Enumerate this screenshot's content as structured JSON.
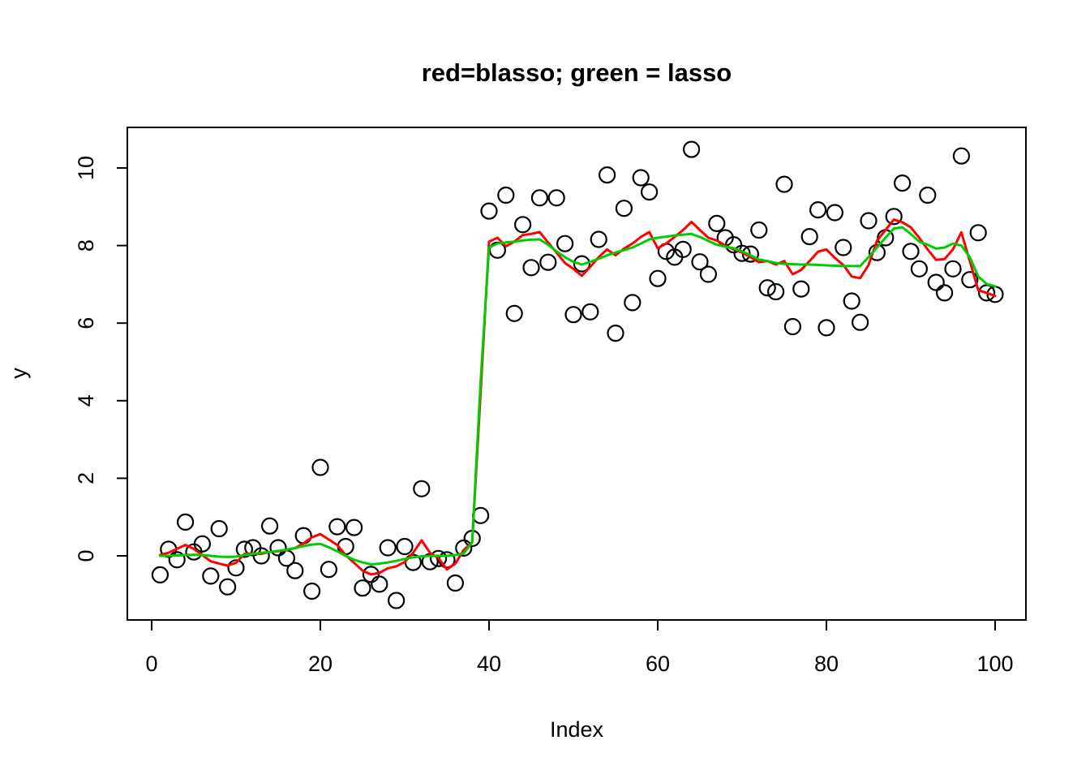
{
  "chart_data": {
    "type": "scatter",
    "title": "red=blasso; green = lasso",
    "xlabel": "Index",
    "ylabel": "y",
    "x_ticks": [
      0,
      20,
      40,
      60,
      80,
      100
    ],
    "y_ticks": [
      0,
      2,
      4,
      6,
      8,
      10
    ],
    "xlim": [
      -3,
      104
    ],
    "ylim": [
      -1.66,
      11.05
    ],
    "grid": false,
    "point_style": "open-circle",
    "point_color": "#000000",
    "background_color": "#ffffff",
    "x": "index 1..100",
    "points": [
      -0.49,
      0.17,
      -0.1,
      0.87,
      0.1,
      0.31,
      -0.52,
      0.7,
      -0.8,
      -0.31,
      0.17,
      0.21,
      0.0,
      0.77,
      0.21,
      -0.06,
      -0.38,
      0.52,
      -0.91,
      2.28,
      -0.35,
      0.75,
      0.24,
      0.73,
      -0.83,
      -0.48,
      -0.73,
      0.21,
      -1.15,
      0.24,
      -0.17,
      1.73,
      -0.15,
      -0.07,
      -0.1,
      -0.7,
      0.2,
      0.45,
      1.04,
      8.89,
      7.88,
      9.3,
      6.25,
      8.54,
      7.43,
      9.23,
      7.57,
      9.23,
      8.05,
      6.22,
      7.53,
      6.29,
      8.16,
      9.82,
      5.74,
      8.96,
      6.53,
      9.75,
      9.38,
      7.15,
      7.85,
      7.7,
      7.9,
      10.48,
      7.58,
      7.26,
      8.57,
      8.2,
      8.02,
      7.8,
      7.78,
      8.4,
      6.91,
      6.81,
      9.58,
      5.91,
      6.88,
      8.23,
      8.92,
      5.88,
      8.85,
      7.95,
      6.57,
      6.02,
      8.64,
      7.82,
      8.2,
      8.75,
      9.61,
      7.85,
      7.4,
      9.3,
      7.05,
      6.78,
      7.4,
      10.31,
      7.12,
      8.33,
      6.78,
      6.74
    ],
    "series": [
      {
        "name": "blasso",
        "color": "#ff0000",
        "values": [
          0.02,
          0.08,
          0.18,
          0.28,
          0.18,
          0.02,
          -0.14,
          -0.2,
          -0.25,
          -0.18,
          0.05,
          0.06,
          0.05,
          0.1,
          0.12,
          0.15,
          0.2,
          0.32,
          0.48,
          0.56,
          0.42,
          0.28,
          0.02,
          -0.18,
          -0.38,
          -0.48,
          -0.44,
          -0.32,
          -0.27,
          -0.16,
          0.08,
          0.4,
          0.08,
          -0.06,
          -0.35,
          -0.2,
          0.15,
          0.35,
          4.2,
          8.1,
          8.2,
          7.98,
          8.1,
          8.27,
          8.3,
          8.35,
          8.08,
          7.82,
          7.55,
          7.4,
          7.22,
          7.45,
          7.7,
          7.9,
          7.75,
          7.92,
          8.05,
          8.22,
          8.35,
          7.93,
          8.05,
          8.22,
          8.4,
          8.61,
          8.4,
          8.2,
          8.13,
          8.0,
          7.9,
          7.82,
          7.7,
          7.57,
          7.6,
          7.51,
          7.6,
          7.26,
          7.37,
          7.6,
          7.84,
          7.9,
          7.68,
          7.5,
          7.2,
          7.16,
          7.5,
          8.13,
          8.4,
          8.67,
          8.6,
          8.47,
          8.2,
          7.9,
          7.63,
          7.65,
          7.9,
          8.34,
          7.6,
          6.85,
          6.78,
          6.7
        ]
      },
      {
        "name": "lasso",
        "color": "#00cc00",
        "values": [
          0.0,
          0.0,
          0.01,
          0.02,
          0.03,
          0.02,
          0.0,
          -0.02,
          -0.03,
          -0.02,
          0.02,
          0.05,
          0.08,
          0.1,
          0.13,
          0.16,
          0.2,
          0.25,
          0.29,
          0.31,
          0.22,
          0.12,
          0.0,
          -0.1,
          -0.17,
          -0.22,
          -0.2,
          -0.17,
          -0.13,
          -0.08,
          -0.04,
          -0.01,
          0.0,
          0.0,
          0.0,
          0.02,
          0.06,
          0.35,
          4.5,
          7.95,
          8.05,
          8.08,
          8.1,
          8.13,
          8.15,
          8.16,
          8.02,
          7.85,
          7.7,
          7.58,
          7.51,
          7.58,
          7.66,
          7.75,
          7.82,
          7.88,
          7.95,
          8.05,
          8.16,
          8.2,
          8.23,
          8.26,
          8.28,
          8.3,
          8.22,
          8.12,
          8.02,
          7.97,
          7.93,
          7.85,
          7.75,
          7.64,
          7.6,
          7.55,
          7.53,
          7.52,
          7.51,
          7.51,
          7.5,
          7.49,
          7.48,
          7.47,
          7.47,
          7.47,
          7.7,
          7.95,
          8.2,
          8.44,
          8.47,
          8.3,
          8.1,
          8.02,
          7.92,
          7.95,
          8.05,
          8.0,
          7.7,
          7.2,
          7.01,
          6.95
        ]
      }
    ]
  }
}
